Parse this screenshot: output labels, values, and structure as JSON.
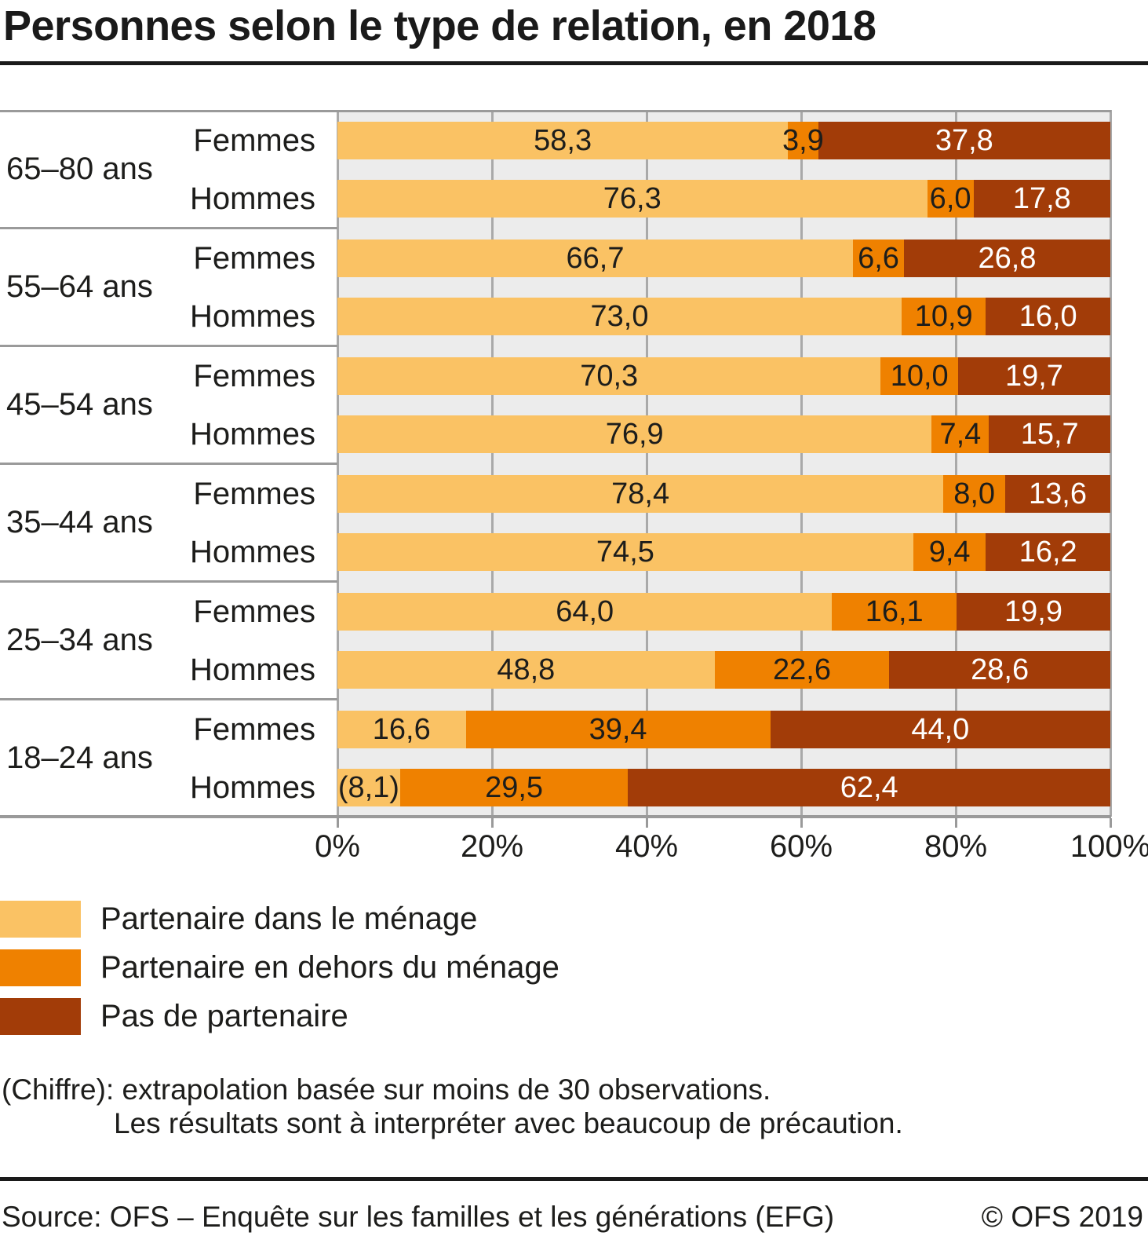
{
  "page": {
    "title": "Personnes selon le type de relation, en 2018",
    "footnote_line1": "(Chiffre): extrapolation basée sur moins de 30 observations.",
    "footnote_line2": "Les résultats sont à interpréter avec beaucoup de précaution.",
    "source_left": "Source: OFS – Enquête sur les familles et les générations (EFG)",
    "source_right": "© OFS 2019"
  },
  "legend": {
    "items": [
      {
        "label": "Partenaire dans le ménage",
        "color": "#FAC264"
      },
      {
        "label": "Partenaire en dehors du ménage",
        "color": "#EF8100"
      },
      {
        "label": "Pas de partenaire",
        "color": "#A23C08"
      }
    ]
  },
  "chart_data": {
    "type": "bar",
    "orientation": "horizontal",
    "stacked": true,
    "unit": "%",
    "xlim": [
      0,
      100
    ],
    "x_ticks": [
      "0%",
      "20%",
      "40%",
      "60%",
      "80%",
      "100%"
    ],
    "grid": true,
    "legend_position": "bottom-left",
    "series_names": [
      "Partenaire dans le ménage",
      "Partenaire en dehors du ménage",
      "Pas de partenaire"
    ],
    "colors": [
      "#FAC264",
      "#EF8100",
      "#A23C08"
    ],
    "label_text_colors": [
      "#1d1d1b",
      "#1d1d1b",
      "#ffffff"
    ],
    "groups": [
      {
        "age": "65–80 ans",
        "rows": [
          {
            "sex": "Femmes",
            "values": [
              58.3,
              3.9,
              37.8
            ],
            "labels": [
              "58,3",
              "3,9",
              "37,8"
            ]
          },
          {
            "sex": "Hommes",
            "values": [
              76.3,
              6.0,
              17.8
            ],
            "labels": [
              "76,3",
              "6,0",
              "17,8"
            ]
          }
        ]
      },
      {
        "age": "55–64 ans",
        "rows": [
          {
            "sex": "Femmes",
            "values": [
              66.7,
              6.6,
              26.8
            ],
            "labels": [
              "66,7",
              "6,6",
              "26,8"
            ]
          },
          {
            "sex": "Hommes",
            "values": [
              73.0,
              10.9,
              16.0
            ],
            "labels": [
              "73,0",
              "10,9",
              "16,0"
            ]
          }
        ]
      },
      {
        "age": "45–54 ans",
        "rows": [
          {
            "sex": "Femmes",
            "values": [
              70.3,
              10.0,
              19.7
            ],
            "labels": [
              "70,3",
              "10,0",
              "19,7"
            ]
          },
          {
            "sex": "Hommes",
            "values": [
              76.9,
              7.4,
              15.7
            ],
            "labels": [
              "76,9",
              "7,4",
              "15,7"
            ]
          }
        ]
      },
      {
        "age": "35–44 ans",
        "rows": [
          {
            "sex": "Femmes",
            "values": [
              78.4,
              8.0,
              13.6
            ],
            "labels": [
              "78,4",
              "8,0",
              "13,6"
            ]
          },
          {
            "sex": "Hommes",
            "values": [
              74.5,
              9.4,
              16.2
            ],
            "labels": [
              "74,5",
              "9,4",
              "16,2"
            ]
          }
        ]
      },
      {
        "age": "25–34 ans",
        "rows": [
          {
            "sex": "Femmes",
            "values": [
              64.0,
              16.1,
              19.9
            ],
            "labels": [
              "64,0",
              "16,1",
              "19,9"
            ]
          },
          {
            "sex": "Hommes",
            "values": [
              48.8,
              22.6,
              28.6
            ],
            "labels": [
              "48,8",
              "22,6",
              "28,6"
            ]
          }
        ]
      },
      {
        "age": "18–24 ans",
        "rows": [
          {
            "sex": "Femmes",
            "values": [
              16.6,
              39.4,
              44.0
            ],
            "labels": [
              "16,6",
              "39,4",
              "44,0"
            ]
          },
          {
            "sex": "Hommes",
            "values": [
              8.1,
              29.5,
              62.4
            ],
            "labels": [
              "(8,1)",
              "29,5",
              "62,4"
            ]
          }
        ]
      }
    ]
  }
}
